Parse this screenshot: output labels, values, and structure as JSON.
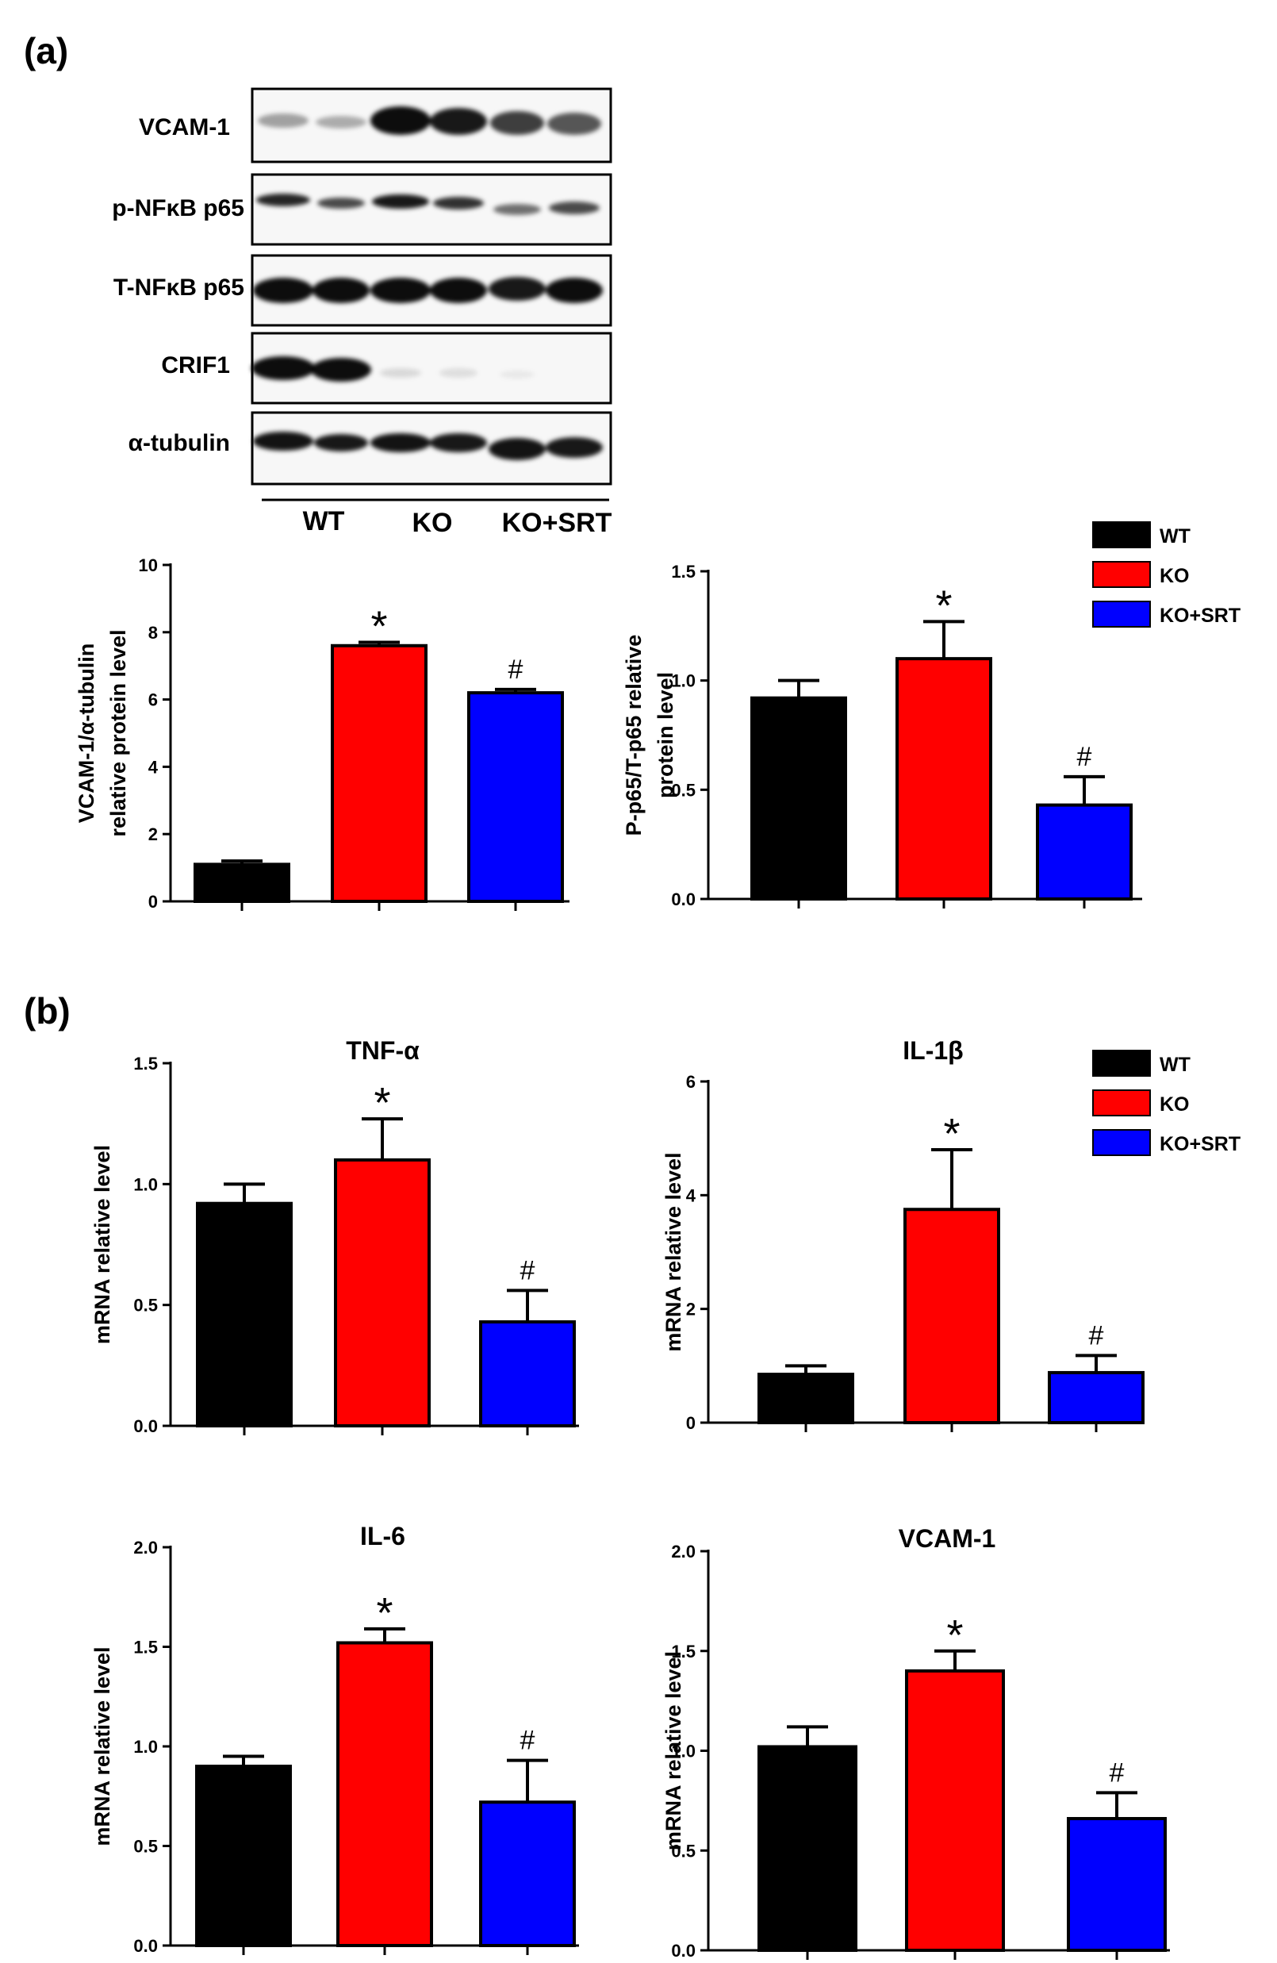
{
  "colors": {
    "wt": "#000000",
    "ko": "#ff0000",
    "ko_srt": "#0000ff"
  },
  "panel_a": {
    "label": "(a)",
    "blot_rows": [
      "VCAM-1",
      "p-NFκB p65",
      "T-NFκB p65",
      "CRIF1",
      "α-tubulin"
    ],
    "groups": [
      "WT",
      "KO",
      "KO+SRT"
    ]
  },
  "panel_b": {
    "label": "(b)"
  },
  "legend_a": [
    {
      "label": "WT",
      "color": "#000000"
    },
    {
      "label": "KO",
      "color": "#ff0000"
    },
    {
      "label": "KO+SRT",
      "color": "#0000ff"
    }
  ],
  "legend_b": [
    {
      "label": "WT",
      "color": "#000000"
    },
    {
      "label": "KO",
      "color": "#ff0000"
    },
    {
      "label": "KO+SRT",
      "color": "#0000ff"
    }
  ],
  "chart_data": [
    {
      "id": "vcam-protein",
      "type": "bar",
      "title": "",
      "ylabel": [
        "VCAM-1/α-tubulin",
        "relative protein level"
      ],
      "categories": [
        "WT",
        "KO",
        "KO+SRT"
      ],
      "values": [
        1.1,
        7.6,
        6.2
      ],
      "errors": [
        0.1,
        0.1,
        0.1
      ],
      "ylim": [
        0,
        10
      ],
      "yticks": [
        "0",
        "2",
        "4",
        "6",
        "8",
        "10"
      ],
      "annotations": [
        "",
        "*",
        "#"
      ]
    },
    {
      "id": "p65-protein",
      "type": "bar",
      "title": "",
      "ylabel": [
        "P-p65/T-p65 relative",
        "protein level"
      ],
      "categories": [
        "WT",
        "KO",
        "KO+SRT"
      ],
      "values": [
        0.92,
        1.1,
        0.43
      ],
      "errors": [
        0.08,
        0.17,
        0.13
      ],
      "ylim": [
        0,
        1.5
      ],
      "yticks": [
        "0.0",
        "0.5",
        "1.0",
        "1.5"
      ],
      "annotations": [
        "",
        "*",
        "#"
      ]
    },
    {
      "id": "tnf-mrna",
      "type": "bar",
      "title": "TNF-α",
      "ylabel": [
        "mRNA relative level"
      ],
      "categories": [
        "WT",
        "KO",
        "KO+SRT"
      ],
      "values": [
        0.92,
        1.1,
        0.43
      ],
      "errors": [
        0.08,
        0.17,
        0.13
      ],
      "ylim": [
        0,
        1.5
      ],
      "yticks": [
        "0.0",
        "0.5",
        "1.0",
        "1.5"
      ],
      "annotations": [
        "",
        "*",
        "#"
      ]
    },
    {
      "id": "il1b-mrna",
      "type": "bar",
      "title": "IL-1β",
      "ylabel": [
        "mRNA relative level"
      ],
      "categories": [
        "WT",
        "KO",
        "KO+SRT"
      ],
      "values": [
        0.85,
        3.75,
        0.88
      ],
      "errors": [
        0.15,
        1.05,
        0.3
      ],
      "ylim": [
        0,
        6
      ],
      "yticks": [
        "0",
        "2",
        "4",
        "6"
      ],
      "annotations": [
        "",
        "*",
        "#"
      ]
    },
    {
      "id": "il6-mrna",
      "type": "bar",
      "title": "IL-6",
      "ylabel": [
        "mRNA relative level"
      ],
      "categories": [
        "WT",
        "KO",
        "KO+SRT"
      ],
      "values": [
        0.9,
        1.52,
        0.72
      ],
      "errors": [
        0.05,
        0.07,
        0.21
      ],
      "ylim": [
        0,
        2.0
      ],
      "yticks": [
        "0.0",
        "0.5",
        "1.0",
        "1.5",
        "2.0"
      ],
      "annotations": [
        "",
        "*",
        "#"
      ]
    },
    {
      "id": "vcam-mrna",
      "type": "bar",
      "title": "VCAM-1",
      "ylabel": [
        "mRNA relative level"
      ],
      "categories": [
        "WT",
        "KO",
        "KO+SRT"
      ],
      "values": [
        1.02,
        1.4,
        0.66
      ],
      "errors": [
        0.1,
        0.1,
        0.13
      ],
      "ylim": [
        0,
        2.0
      ],
      "yticks": [
        "0.0",
        "0.5",
        "1.0",
        "1.5",
        "2.0"
      ],
      "annotations": [
        "",
        "*",
        "#"
      ]
    }
  ]
}
